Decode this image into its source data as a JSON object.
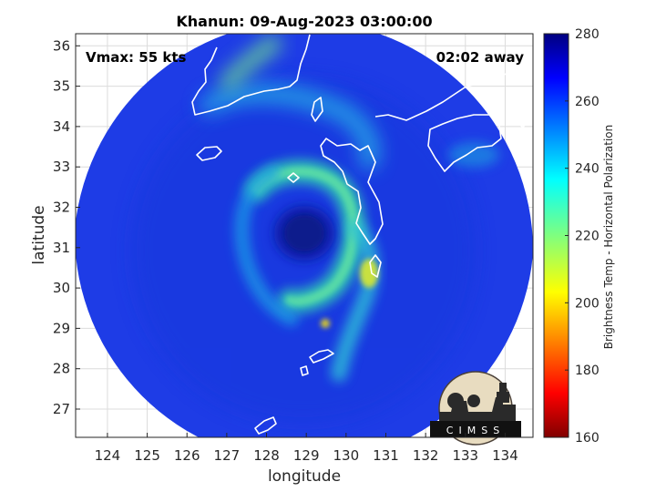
{
  "chart_data": {
    "type": "heatmap",
    "title": "Khanun: 09-Aug-2023 03:00:00",
    "xlabel": "longitude",
    "ylabel": "latitude",
    "xlim": [
      123.2,
      134.7
    ],
    "ylim": [
      26.3,
      36.3
    ],
    "x_ticks": [
      124,
      125,
      126,
      127,
      128,
      129,
      130,
      131,
      132,
      133,
      134
    ],
    "y_ticks": [
      27,
      28,
      29,
      30,
      31,
      32,
      33,
      34,
      35,
      36
    ],
    "grid": true,
    "annotations": {
      "vmax": "Vmax: 55 kts",
      "time_away": "02:02 away"
    },
    "storm_center": {
      "lon": 129.1,
      "lat": 31.4
    },
    "swath_center": {
      "lon": 128.95,
      "lat": 31.35
    },
    "colorbar": {
      "label": "Brightness Temp - Horizontal Polarization",
      "min": 160,
      "max": 280,
      "ticks": [
        160,
        180,
        200,
        220,
        240,
        260,
        280
      ],
      "colormap": "jet"
    },
    "features": [
      {
        "name": "eye",
        "lon": 129.15,
        "lat": 31.45,
        "value": 262
      },
      {
        "name": "northern-band",
        "lon": 129.0,
        "lat": 32.8,
        "value": 232
      },
      {
        "name": "southern-band",
        "lon": 130.3,
        "lat": 30.4,
        "value": 225
      },
      {
        "name": "far-north-band",
        "lon": 128.2,
        "lat": 35.4,
        "value": 240
      },
      {
        "name": "hot-spot",
        "lon": 130.85,
        "lat": 30.3,
        "value": 205
      },
      {
        "name": "small-cell",
        "lon": 129.5,
        "lat": 29.05,
        "value": 200
      }
    ],
    "logo": "CIMSS"
  }
}
